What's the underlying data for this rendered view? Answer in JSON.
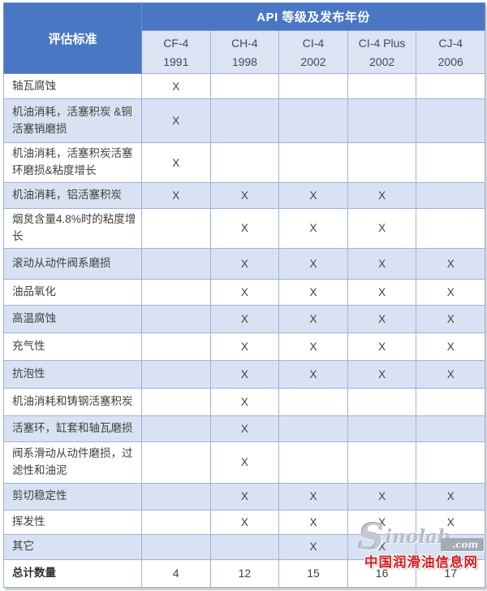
{
  "colors": {
    "header_blue": "#4a77c4",
    "subheader_bg": "#dce4f3",
    "row_alt_bg": "#d9e2f3",
    "grid_border": "#9db3d8",
    "text": "#3f3f3f",
    "watermark_red": "#cf1f1f",
    "watermark_silver": "#b7bec9"
  },
  "chart_data": {
    "type": "table",
    "title": "API 等级及发布年份",
    "row_header": "评估标准",
    "columns": [
      {
        "grade": "CF-4",
        "year": "1991"
      },
      {
        "grade": "CH-4",
        "year": "1998"
      },
      {
        "grade": "CI-4",
        "year": "2002"
      },
      {
        "grade": "CI-4 Plus",
        "year": "2002"
      },
      {
        "grade": "CJ-4",
        "year": "2006"
      }
    ],
    "rows": [
      {
        "criteria": "轴瓦腐蚀",
        "marks": [
          "X",
          "",
          "",
          "",
          ""
        ]
      },
      {
        "criteria": "机油消耗，活塞积炭 &铜活塞销磨损",
        "marks": [
          "X",
          "",
          "",
          "",
          ""
        ]
      },
      {
        "criteria": "机油消耗，活塞积炭活塞环磨损&粘度增长",
        "marks": [
          "X",
          "",
          "",
          "",
          ""
        ]
      },
      {
        "criteria": "机油消耗，铝活塞积炭",
        "marks": [
          "X",
          "X",
          "X",
          "X",
          ""
        ]
      },
      {
        "criteria": "烟炱含量4.8%时的粘度增长",
        "marks": [
          "",
          "X",
          "X",
          "X",
          ""
        ]
      },
      {
        "criteria": "滚动从动件阀系磨损",
        "marks": [
          "",
          "X",
          "X",
          "X",
          "X"
        ]
      },
      {
        "criteria": "油品氧化",
        "marks": [
          "",
          "X",
          "X",
          "X",
          "X"
        ]
      },
      {
        "criteria": "高温腐蚀",
        "marks": [
          "",
          "X",
          "X",
          "X",
          "X"
        ]
      },
      {
        "criteria": "充气性",
        "marks": [
          "",
          "X",
          "X",
          "X",
          "X"
        ]
      },
      {
        "criteria": "抗泡性",
        "marks": [
          "",
          "X",
          "X",
          "X",
          "X"
        ]
      },
      {
        "criteria": "机油消耗和铸钢活塞积炭",
        "marks": [
          "",
          "X",
          "",
          "",
          ""
        ]
      },
      {
        "criteria": "活塞环，缸套和轴瓦磨损",
        "marks": [
          "",
          "X",
          "",
          "",
          ""
        ]
      },
      {
        "criteria": "阀系滑动从动件磨损，过滤性和油泥",
        "marks": [
          "",
          "X",
          "",
          "",
          ""
        ]
      },
      {
        "criteria": "剪切稳定性",
        "marks": [
          "",
          "X",
          "X",
          "X",
          "X"
        ]
      },
      {
        "criteria": "挥发性",
        "marks": [
          "",
          "X",
          "X",
          "X",
          "X"
        ]
      },
      {
        "criteria": "其它",
        "marks": [
          "",
          "",
          "X",
          "X",
          "X"
        ]
      }
    ],
    "total": {
      "label": "总计数量",
      "values": [
        "4",
        "12",
        "15",
        "16",
        "17"
      ]
    }
  },
  "watermark": {
    "logo_s": "S",
    "logo_name": "inolab",
    "logo_domain": ".com",
    "caption": "中国润滑油信息网"
  }
}
